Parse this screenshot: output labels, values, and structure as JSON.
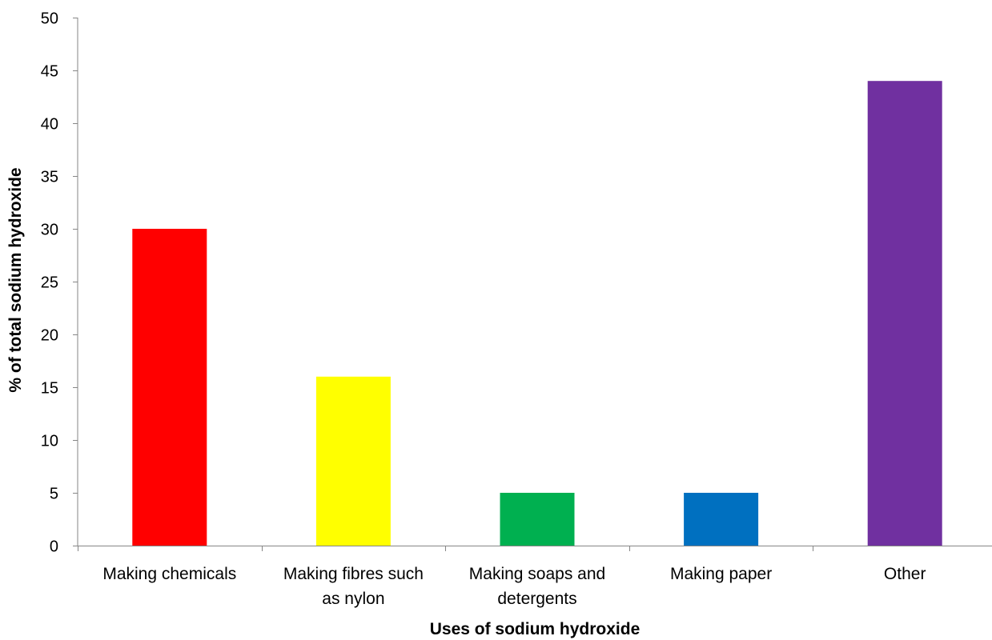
{
  "chart_data": {
    "type": "bar",
    "title": "",
    "xlabel": "Uses of sodium hydroxide",
    "ylabel": "% of total sodium hydroxide",
    "ylim": [
      0,
      50
    ],
    "yticks": [
      0,
      5,
      10,
      15,
      20,
      25,
      30,
      35,
      40,
      45,
      50
    ],
    "grid": false,
    "legend": "none",
    "categories": [
      "Making chemicals",
      "Making fibres such as nylon",
      "Making soaps and detergents",
      "Making paper",
      "Other"
    ],
    "category_lines": [
      [
        "Making chemicals"
      ],
      [
        "Making fibres such",
        "as nylon"
      ],
      [
        "Making soaps and",
        "detergents"
      ],
      [
        "Making paper"
      ],
      [
        "Other"
      ]
    ],
    "values": [
      30,
      16,
      5,
      5,
      44
    ],
    "colors": [
      "#ff0000",
      "#ffff00",
      "#00b050",
      "#0070c0",
      "#7030a0"
    ]
  }
}
